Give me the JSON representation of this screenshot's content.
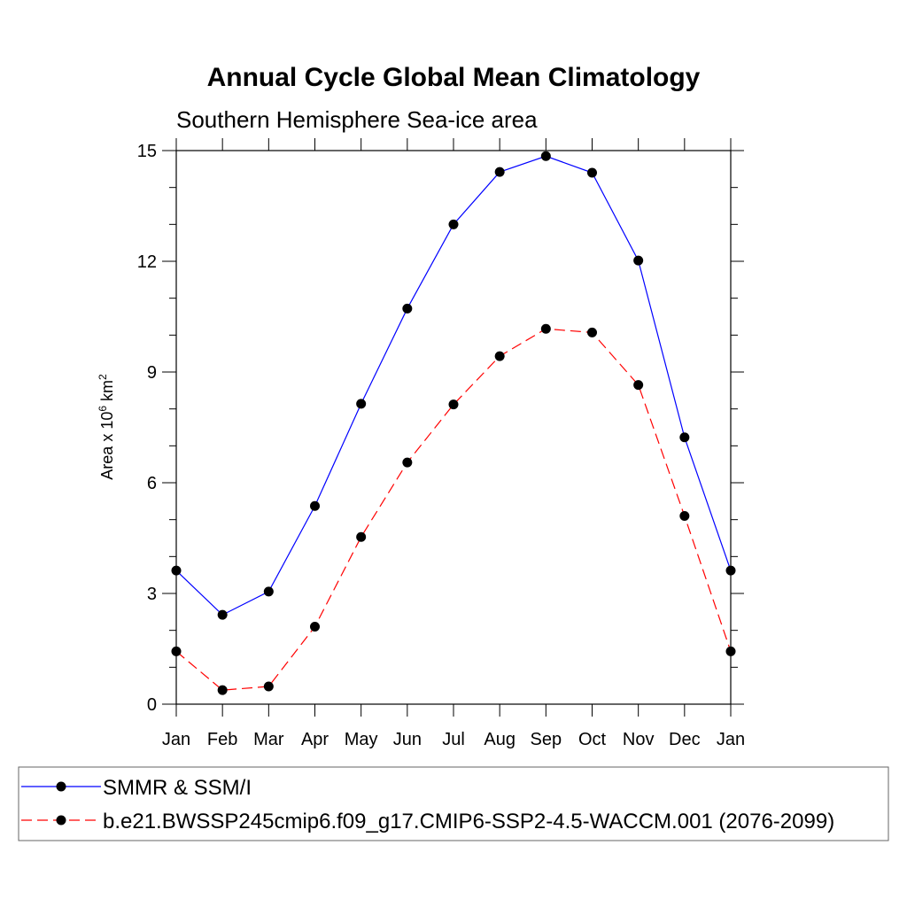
{
  "chart_data": {
    "type": "line",
    "title": "Annual Cycle Global Mean Climatology",
    "subtitle": "Southern Hemisphere Sea-ice area",
    "xlabel": "",
    "ylabel": {
      "prefix": "Area x 10",
      "exp1": "6",
      "mid": " km",
      "exp2": "2"
    },
    "categories": [
      "Jan",
      "Feb",
      "Mar",
      "Apr",
      "May",
      "Jun",
      "Jul",
      "Aug",
      "Sep",
      "Oct",
      "Nov",
      "Dec",
      "Jan"
    ],
    "ylim": [
      0,
      15
    ],
    "yticks": [
      "0",
      "3",
      "6",
      "9",
      "12",
      "15"
    ],
    "series": [
      {
        "name": "SMMR & SSM/I",
        "color": "#0000ff",
        "dashed": false,
        "values": [
          3.62,
          2.42,
          3.05,
          5.37,
          8.14,
          10.72,
          13.0,
          14.42,
          14.85,
          14.4,
          12.02,
          7.23,
          3.62
        ]
      },
      {
        "name": "b.e21.BWSSP245cmip6.f09_g17.CMIP6-SSP2-4.5-WACCM.001 (2076-2099)",
        "color": "#ff0000",
        "dashed": true,
        "values": [
          1.43,
          0.38,
          0.48,
          2.1,
          4.53,
          6.55,
          8.12,
          9.43,
          10.17,
          10.07,
          8.65,
          5.1,
          1.43
        ]
      }
    ],
    "legend_position": "bottom"
  }
}
